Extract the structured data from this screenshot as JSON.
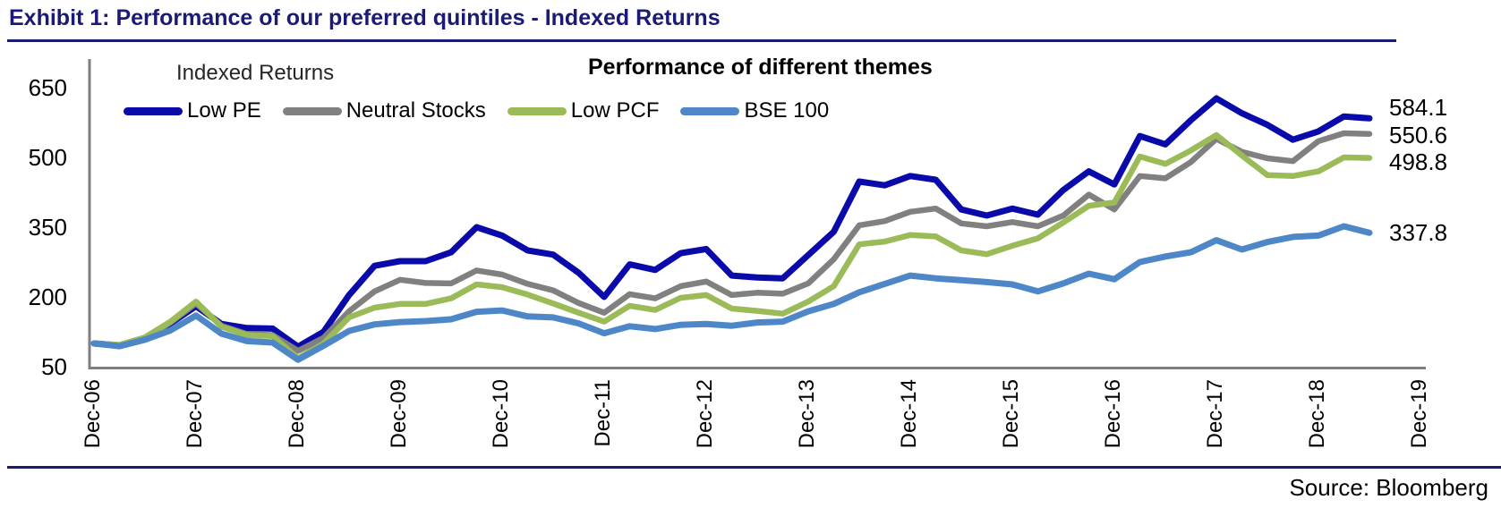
{
  "header": {
    "title": "Exhibit 1: Performance of our preferred quintiles - Indexed Returns"
  },
  "footer": {
    "source": "Source: Bloomberg"
  },
  "chart_data": {
    "type": "line",
    "title": "Performance of different themes",
    "axis_caption": "Indexed Returns",
    "xlabel": "",
    "ylabel": "",
    "grid": false,
    "legend_position": "top",
    "ylim": [
      50,
      700
    ],
    "y_ticks": [
      50,
      200,
      350,
      500,
      650
    ],
    "x_ticks": [
      "Dec-06",
      "Dec-07",
      "Dec-08",
      "Dec-09",
      "Dec-10",
      "Dec-11",
      "Dec-12",
      "Dec-13",
      "Dec-14",
      "Dec-15",
      "Dec-16",
      "Dec-17",
      "Dec-18",
      "Dec-19"
    ],
    "x": [
      "Dec-06",
      "Mar-07",
      "Jun-07",
      "Sep-07",
      "Dec-07",
      "Mar-08",
      "Jun-08",
      "Sep-08",
      "Dec-08",
      "Mar-09",
      "Jun-09",
      "Sep-09",
      "Dec-09",
      "Mar-10",
      "Jun-10",
      "Sep-10",
      "Dec-10",
      "Mar-11",
      "Jun-11",
      "Sep-11",
      "Dec-11",
      "Mar-12",
      "Jun-12",
      "Sep-12",
      "Dec-12",
      "Mar-13",
      "Jun-13",
      "Sep-13",
      "Dec-13",
      "Mar-14",
      "Jun-14",
      "Sep-14",
      "Dec-14",
      "Mar-15",
      "Jun-15",
      "Sep-15",
      "Dec-15",
      "Mar-16",
      "Jun-16",
      "Sep-16",
      "Dec-16",
      "Mar-17",
      "Jun-17",
      "Sep-17",
      "Dec-17",
      "Mar-18",
      "Jun-18",
      "Sep-18",
      "Dec-18",
      "Mar-19",
      "Jun-19"
    ],
    "axis_color": "#7f7f7f",
    "series": [
      {
        "name": "Low PE",
        "color": "#0a0aaa",
        "end_label": "584.1",
        "values": [
          100,
          96,
          112,
          143,
          180,
          142,
          133,
          132,
          93,
          125,
          204,
          267,
          277,
          277,
          296,
          350,
          332,
          300,
          291,
          252,
          200,
          270,
          258,
          294,
          303,
          246,
          242,
          240,
          290,
          340,
          448,
          440,
          460,
          452,
          388,
          375,
          390,
          377,
          430,
          470,
          442,
          546,
          528,
          580,
          627,
          595,
          570,
          538,
          556,
          588,
          584.1
        ]
      },
      {
        "name": "Neutral Stocks",
        "color": "#808080",
        "end_label": "550.6",
        "values": [
          100,
          96,
          112,
          145,
          186,
          138,
          120,
          118,
          84,
          112,
          169,
          212,
          237,
          230,
          229,
          257,
          248,
          228,
          214,
          187,
          166,
          206,
          197,
          223,
          233,
          204,
          209,
          207,
          229,
          281,
          354,
          363,
          383,
          390,
          358,
          352,
          361,
          352,
          375,
          420,
          388,
          460,
          455,
          490,
          540,
          512,
          498,
          492,
          535,
          552,
          550.6
        ]
      },
      {
        "name": "Low PCF",
        "color": "#9bbb59",
        "end_label": "498.8",
        "values": [
          100,
          97,
          113,
          147,
          190,
          136,
          118,
          116,
          68,
          100,
          156,
          177,
          185,
          185,
          197,
          227,
          221,
          205,
          186,
          166,
          147,
          181,
          172,
          198,
          204,
          175,
          170,
          164,
          190,
          223,
          313,
          319,
          333,
          330,
          300,
          292,
          310,
          326,
          360,
          396,
          403,
          502,
          486,
          515,
          548,
          504,
          462,
          460,
          470,
          500,
          498.8
        ]
      },
      {
        "name": "BSE 100",
        "color": "#4e87c8",
        "end_label": "337.8",
        "values": [
          100,
          94,
          108,
          128,
          160,
          121,
          105,
          102,
          65,
          95,
          127,
          141,
          146,
          148,
          152,
          168,
          171,
          158,
          156,
          143,
          122,
          137,
          131,
          140,
          142,
          138,
          145,
          147,
          169,
          185,
          210,
          228,
          246,
          240,
          236,
          232,
          227,
          212,
          229,
          250,
          238,
          275,
          287,
          296,
          322,
          302,
          318,
          329,
          332,
          352,
          337.8
        ]
      }
    ]
  }
}
